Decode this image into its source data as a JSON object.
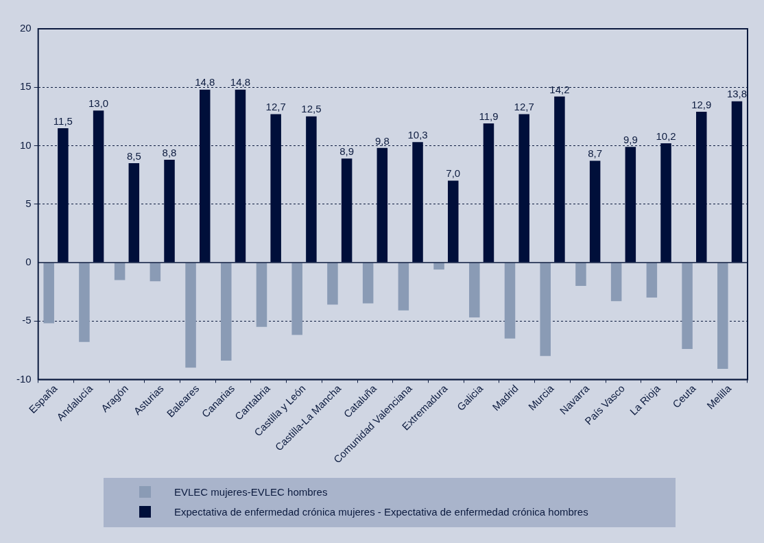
{
  "chart_data": {
    "type": "bar",
    "categories": [
      "España",
      "Andalucía",
      "Aragón",
      "Asturias",
      "Baleares",
      "Canarias",
      "Cantabria",
      "Castilla y León",
      "Castilla-La Mancha",
      "Cataluña",
      "Comunidad Valenciana",
      "Extremadura",
      "Galicia",
      "Madrid",
      "Murcia",
      "Navarra",
      "País Vasco",
      "La Rioja",
      "Ceuta",
      "Melilla"
    ],
    "series": [
      {
        "name": "EVLEC mujeres-EVLEC hombres",
        "color": "#8a9bb5",
        "values": [
          -5.2,
          -6.8,
          -1.5,
          -1.6,
          -9.0,
          -8.4,
          -5.5,
          -6.2,
          -3.6,
          -3.5,
          -4.1,
          -0.6,
          -4.7,
          -6.5,
          -8.0,
          -2.0,
          -3.3,
          -3.0,
          -7.4,
          -9.1
        ]
      },
      {
        "name": "Expectativa de enfermedad crónica mujeres - Expectativa de enfermedad crónica hombres",
        "color": "#000f3a",
        "values": [
          11.5,
          13.0,
          8.5,
          8.8,
          14.8,
          14.8,
          12.7,
          12.5,
          8.9,
          9.8,
          10.3,
          7.0,
          11.9,
          12.7,
          14.2,
          8.7,
          9.9,
          10.2,
          12.9,
          13.8
        ],
        "value_labels": [
          "11,5",
          "13,0",
          "8,5",
          "8,8",
          "14,8",
          "14,8",
          "12,7",
          "12,5",
          "8,9",
          "9,8",
          "10,3",
          "7,0",
          "11,9",
          "12,7",
          "14,2",
          "8,7",
          "9,9",
          "10,2",
          "12,9",
          "13,8"
        ]
      }
    ],
    "ylim": [
      -10,
      20
    ],
    "yticks": [
      -10,
      -5,
      0,
      5,
      10,
      15,
      20
    ],
    "grid": "y",
    "legend": "bottom"
  }
}
